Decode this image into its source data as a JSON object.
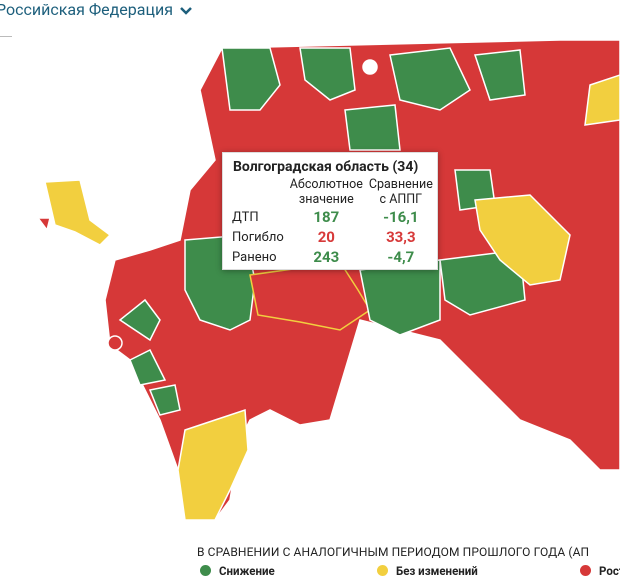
{
  "header": {
    "title": "Российская Федерация"
  },
  "tooltip": {
    "title": "Волгоградская область (34)",
    "columns": [
      "Абсолютное значение",
      "Сравнение с АППГ"
    ],
    "rows": [
      [
        "ДТП",
        "187",
        "-16,1"
      ],
      [
        "Погибло",
        "20",
        "33,3"
      ],
      [
        "Ранено",
        "243",
        "-4,7"
      ]
    ]
  },
  "legend": {
    "title": "В СРАВНЕНИИ С АНАЛОГИЧНЫМ ПЕРИОДОМ ПРОШЛОГО ГОДА (АП",
    "items": [
      "Снижение",
      "Без изменений",
      "Рост"
    ]
  }
}
